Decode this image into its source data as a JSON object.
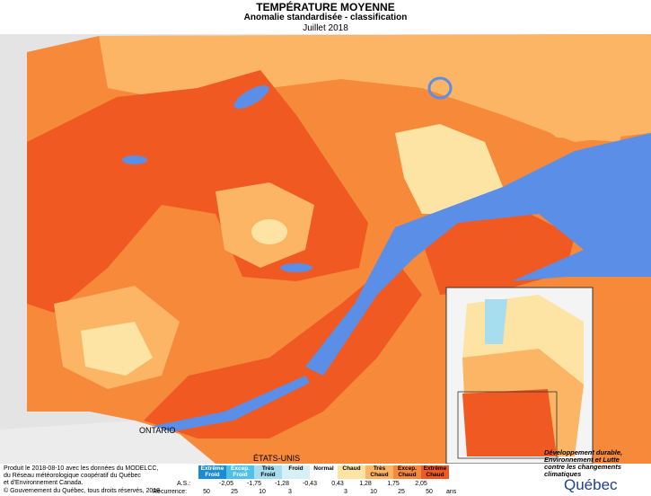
{
  "header": {
    "title": "TEMPÉRATURE MOYENNE",
    "subtitle": "Anomalie standardisée - classification",
    "period": "Juillet 2018"
  },
  "map": {
    "labels": [
      "ONTARIO",
      "ÉTATS-UNIS"
    ]
  },
  "legend": {
    "classes": [
      {
        "label": "Extrême Froid",
        "color": "#1b8bd3"
      },
      {
        "label": "Excep. Froid",
        "color": "#4fc0e8"
      },
      {
        "label": "Très Froid",
        "color": "#a6def0"
      },
      {
        "label": "Froid",
        "color": "#d6f0f6"
      },
      {
        "label": "Normal",
        "color": "#ffffff"
      },
      {
        "label": "Chaud",
        "color": "#fde3a4"
      },
      {
        "label": "Très Chaud",
        "color": "#fbb565"
      },
      {
        "label": "Excep. Chaud",
        "color": "#f7893a"
      },
      {
        "label": "Extrême Chaud",
        "color": "#f05a22"
      }
    ],
    "as_label": "A.S.:",
    "as_values": [
      "-2,05",
      "-1,75",
      "-1,28",
      "-0,43",
      "0,43",
      "1,28",
      "1,75",
      "2,05"
    ],
    "recurrence_label": "Récurrence:",
    "recurrence_values": [
      "50",
      "25",
      "10",
      "3",
      "3",
      "10",
      "25",
      "50"
    ],
    "recurrence_unit": "ans"
  },
  "footer": {
    "credit": [
      "Produit le 2018-08-10 avec les données du MODELCC,",
      "du Réseau météorologique coopératif du Québec",
      "et d'Environnement Canada."
    ],
    "copyright": "© Gouvernement du Québec, tous droits réservés, 2018"
  },
  "logo": {
    "ministry": [
      "Développement durable,",
      "Environnement et Lutte",
      "contre les changements",
      "climatiques"
    ],
    "government": "Québec"
  }
}
